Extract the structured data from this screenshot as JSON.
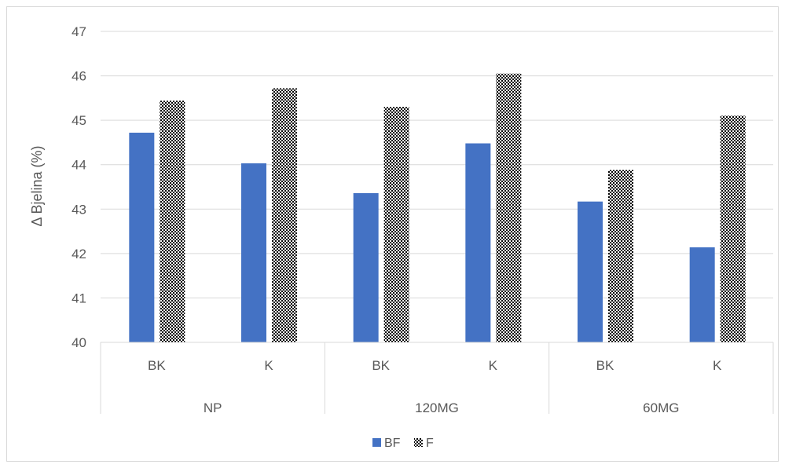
{
  "chart_data": {
    "type": "bar",
    "title": "",
    "xlabel": "",
    "ylabel": "Δ Bjelina (%)",
    "ylim": [
      40,
      47
    ],
    "yticks": [
      40,
      41,
      42,
      43,
      44,
      45,
      46,
      47
    ],
    "grid": true,
    "legend_position": "bottom",
    "groups": [
      {
        "label": "NP",
        "categories": [
          "BK",
          "K"
        ]
      },
      {
        "label": "120MG",
        "categories": [
          "BK",
          "K"
        ]
      },
      {
        "label": "60MG",
        "categories": [
          "BK",
          "K"
        ]
      }
    ],
    "categories": [
      "BK",
      "K",
      "BK",
      "K",
      "BK",
      "K"
    ],
    "series": [
      {
        "name": "BF",
        "color": "#4472c4",
        "pattern": "solid",
        "values": [
          44.72,
          44.03,
          43.36,
          44.48,
          43.17,
          42.14
        ]
      },
      {
        "name": "F",
        "color": "#000000",
        "pattern": "dotted",
        "values": [
          45.44,
          45.72,
          45.3,
          46.05,
          43.88,
          45.1
        ]
      }
    ]
  }
}
